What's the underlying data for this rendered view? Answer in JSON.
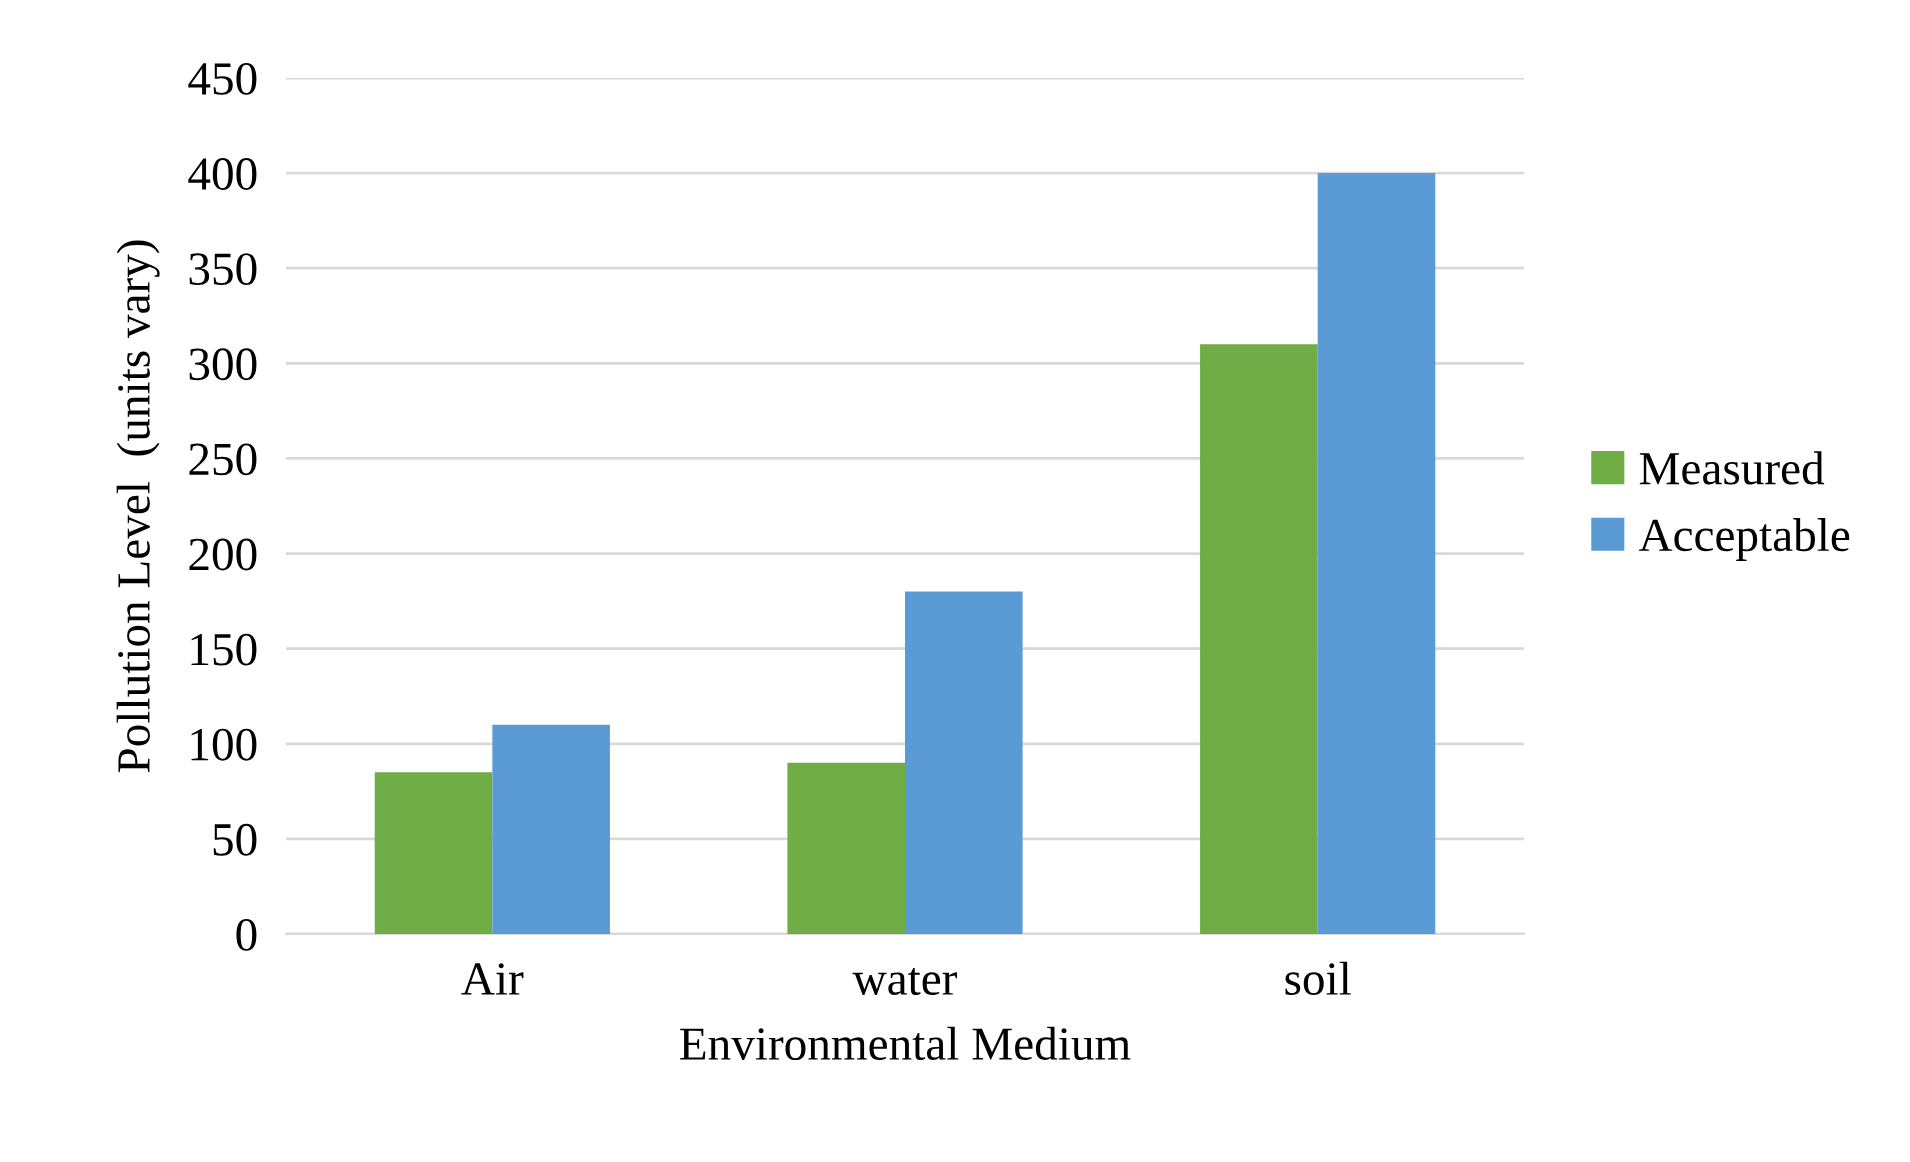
{
  "chart_data": {
    "type": "bar",
    "xlabel": "Environmental Medium",
    "ylabel": "Pollution Level  (units vary)",
    "categories": [
      "Air",
      "water",
      "soil"
    ],
    "series": [
      {
        "name": "Measured",
        "color": "#70ad47",
        "values": [
          85,
          90,
          310
        ]
      },
      {
        "name": "Acceptable",
        "color": "#5b9bd5",
        "values": [
          110,
          180,
          400
        ]
      }
    ],
    "ylim": [
      0,
      450
    ],
    "yticks": [
      0,
      50,
      100,
      150,
      200,
      250,
      300,
      350,
      400,
      450
    ],
    "grid": "y",
    "legend": "right"
  }
}
